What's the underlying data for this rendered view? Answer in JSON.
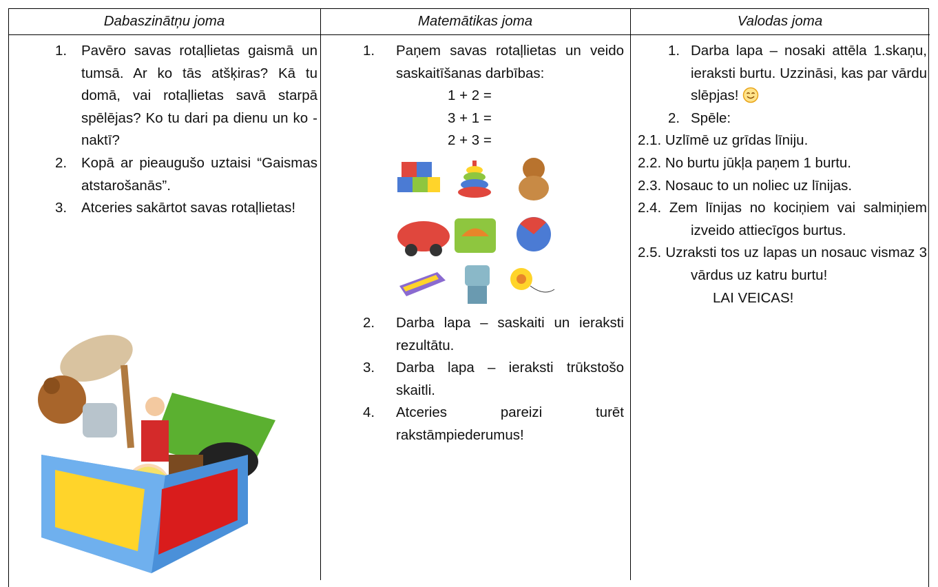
{
  "table": {
    "header": [
      "Dabaszinātņu joma",
      "Matemātikas joma",
      "Valodas joma"
    ],
    "science": {
      "items": [
        {
          "number": "1.",
          "text": "Pavēro savas rotaļlietas gaismā un tumsā. Ar ko tās atšķiras? Kā tu domā, vai rotaļlietas savā starpā spēlējas? Ko tu dari pa dienu un ko - naktī?"
        },
        {
          "number": "2.",
          "text": "Kopā ar pieaugušo uztaisi “Gaismas atstarošanās”."
        },
        {
          "number": "3.",
          "text": "Atceries sakārtot savas rotaļlietas!"
        }
      ]
    },
    "math": {
      "first": {
        "number": "1.",
        "text": "Paņem savas rotaļlietas un veido saskaitīšanas darbības:"
      },
      "equations": [
        "1 + 2 =",
        "3 + 1 =",
        "2 + 3 ="
      ],
      "items": [
        {
          "number": "2.",
          "text": "Darba lapa – saskaiti un ieraksti rezultātu."
        },
        {
          "number": "3.",
          "text": "Darba lapa – ieraksti trūkstošo skaitli."
        },
        {
          "number": "4.",
          "text": "Atceries pareizi turēt rakstāmpiederumus!"
        }
      ]
    },
    "language": {
      "items": [
        {
          "number": "1.",
          "text": "Darba lapa – nosaki attēla 1.skaņu, ieraksti burtu. Uzzināsi, kas par vārdu slēpjas!"
        },
        {
          "number": "2.",
          "text": "Spēle:"
        }
      ],
      "subitems": [
        {
          "number": "2.1.",
          "text": "Uzlīmē uz grīdas līniju."
        },
        {
          "number": "2.2.",
          "text": "No burtu jūkļa paņem 1 burtu."
        },
        {
          "number": "2.3.",
          "text": "Nosauc to un noliec uz līnijas."
        },
        {
          "number": "2.4.",
          "text": "Zem līnijas no kociņiem vai salmiņiem izveido attiecīgos burtus."
        },
        {
          "number": "2.5.",
          "text": "Uzraksti tos uz lapas un nosauc vismaz 3 vārdus uz katru burtu!"
        }
      ],
      "closing": "LAI VEICAS!"
    }
  }
}
